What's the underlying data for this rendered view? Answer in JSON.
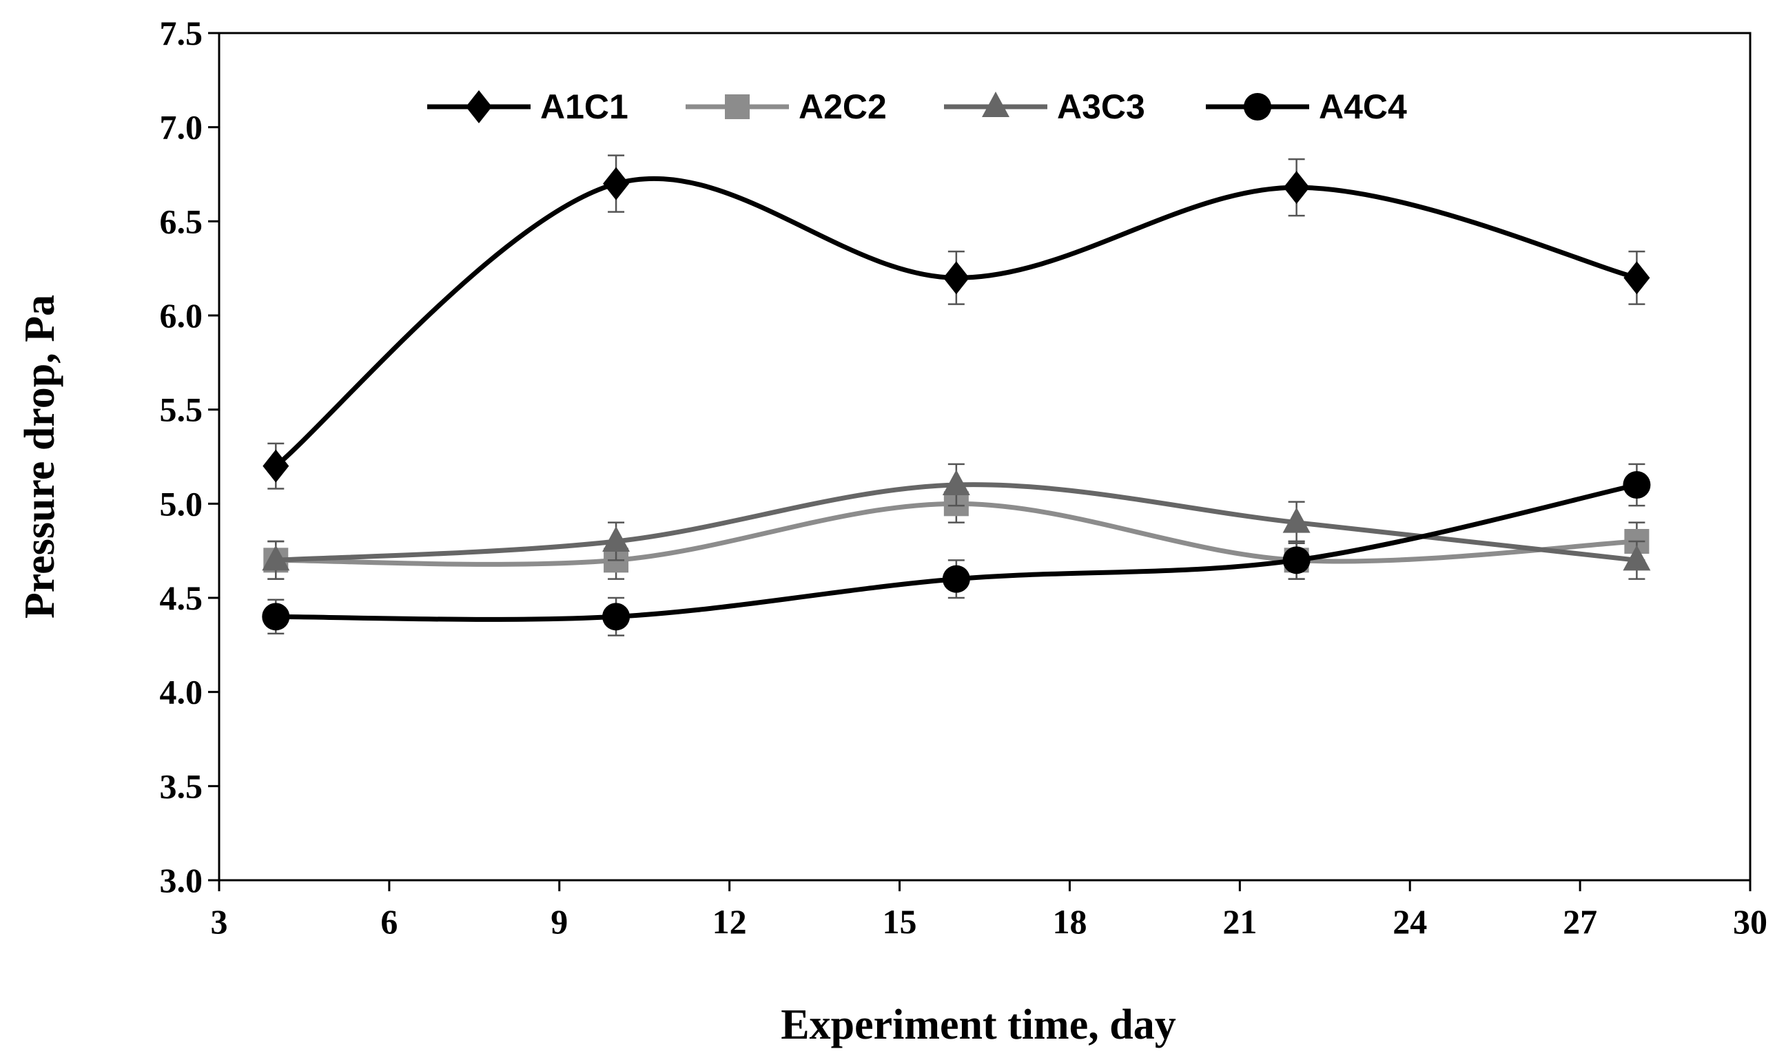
{
  "chart_data": {
    "type": "line",
    "title": "",
    "xlabel": "Experiment  time, day",
    "ylabel": "Pressure drop, Pa",
    "xlim": [
      3,
      30
    ],
    "ylim": [
      3.0,
      7.5
    ],
    "xticks": [
      3,
      6,
      9,
      12,
      15,
      18,
      21,
      24,
      27,
      30
    ],
    "yticks": [
      3.0,
      3.5,
      4.0,
      4.5,
      5.0,
      5.5,
      6.0,
      6.5,
      7.0,
      7.5
    ],
    "xtick_labels": [
      "3",
      "6",
      "9",
      "12",
      "15",
      "18",
      "21",
      "24",
      "27",
      "30"
    ],
    "ytick_labels": [
      "3.0",
      "3.5",
      "4.0",
      "4.5",
      "5.0",
      "5.5",
      "6.0",
      "6.5",
      "7.0",
      "7.5"
    ],
    "grid": false,
    "legend_position": "top-center",
    "x": [
      4,
      10,
      16,
      22,
      28
    ],
    "series": [
      {
        "name": "A1C1",
        "marker": "diamond",
        "color": "#000000",
        "values": [
          5.2,
          6.7,
          6.2,
          6.68,
          6.2
        ],
        "errors": [
          0.12,
          0.15,
          0.14,
          0.15,
          0.14
        ]
      },
      {
        "name": "A2C2",
        "marker": "square",
        "color": "#8c8c8c",
        "values": [
          4.7,
          4.7,
          5.0,
          4.7,
          4.8
        ],
        "errors": [
          0.1,
          0.1,
          0.1,
          0.1,
          0.1
        ]
      },
      {
        "name": "A3C3",
        "marker": "triangle",
        "color": "#666666",
        "values": [
          4.7,
          4.8,
          5.1,
          4.9,
          4.7
        ],
        "errors": [
          0.1,
          0.1,
          0.11,
          0.11,
          0.1
        ]
      },
      {
        "name": "A4C4",
        "marker": "circle",
        "color": "#000000",
        "values": [
          4.4,
          4.4,
          4.6,
          4.7,
          5.1
        ],
        "errors": [
          0.09,
          0.1,
          0.1,
          0.1,
          0.11
        ]
      }
    ]
  }
}
